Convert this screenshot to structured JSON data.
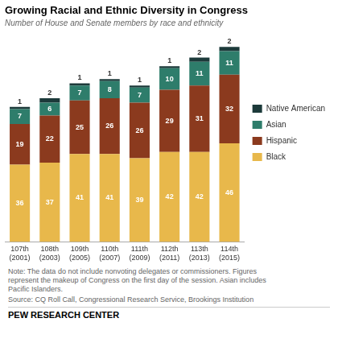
{
  "chart_data": {
    "type": "bar",
    "stacked": true,
    "title": "Growing Racial and Ethnic Diversity in Congress",
    "subtitle": "Number of House and Senate members by race and ethnicity",
    "categories": [
      "107th\n(2001)",
      "108th\n(2003)",
      "109th\n(2005)",
      "110th\n(2007)",
      "111th\n(2009)",
      "112th\n(2011)",
      "113th\n(2013)",
      "114th\n(2015)"
    ],
    "series": [
      {
        "name": "Black",
        "color": "#E8B84B",
        "values": [
          36,
          37,
          41,
          41,
          39,
          42,
          42,
          46
        ]
      },
      {
        "name": "Hispanic",
        "color": "#8B3A1E",
        "values": [
          19,
          22,
          25,
          26,
          26,
          29,
          31,
          32
        ]
      },
      {
        "name": "Asian",
        "color": "#2E7D6B",
        "values": [
          7,
          6,
          7,
          8,
          7,
          10,
          11,
          11
        ]
      },
      {
        "name": "Native American",
        "color": "#1C3A3A",
        "values": [
          1,
          2,
          1,
          1,
          1,
          1,
          2,
          2
        ]
      }
    ],
    "ylim": [
      0,
      95
    ],
    "grid": false,
    "legend": "right",
    "data_labels": true,
    "tick_labels": "x",
    "annotations": [
      "Note: The data do not include nonvoting delegates or commissioners. Figures\nrepresent the makeup of Congress on the first day of the session. Asian includes\nPacific Islanders.",
      "Source: CQ Roll Call, Congressional Research Service, Brookings Institution",
      "PEW RESEARCH CENTER"
    ]
  }
}
